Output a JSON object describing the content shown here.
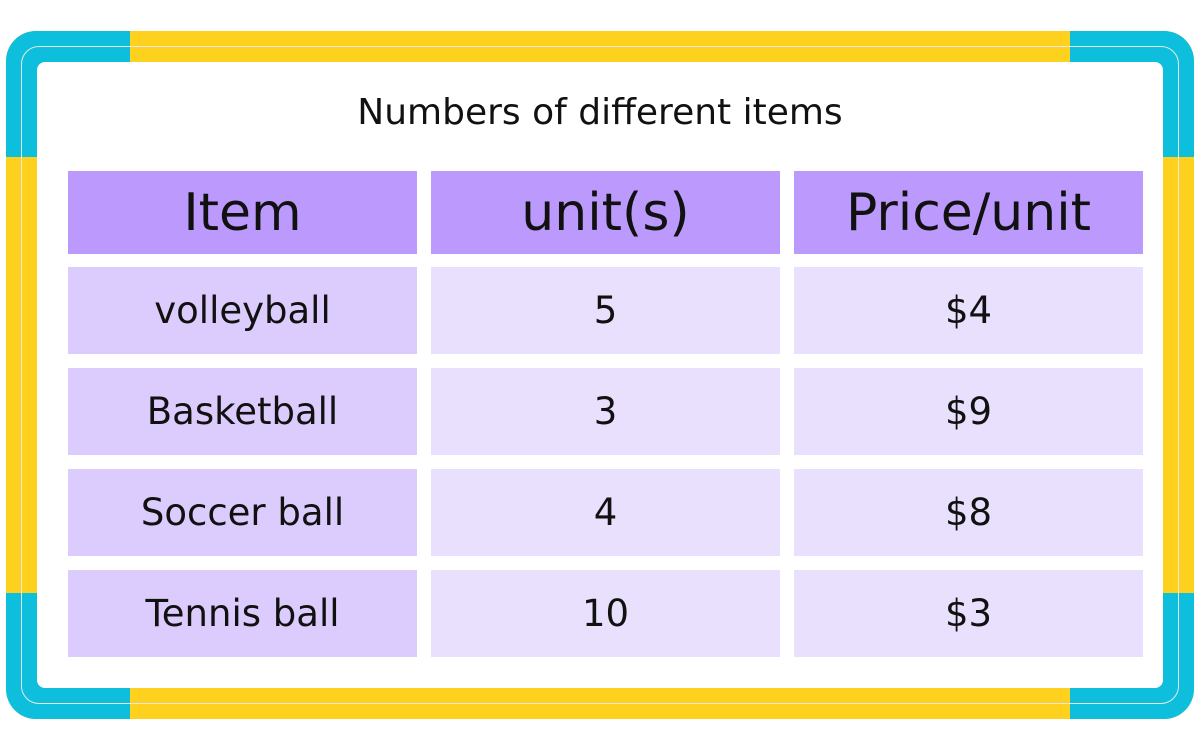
{
  "title": "Numbers of different items",
  "colors": {
    "frame_cyan": "#0dbfdc",
    "frame_yellow": "#fdd11d",
    "header": "#bb99fd",
    "first_col": "#dccbfd",
    "cells": "#e9e0fd"
  },
  "table": {
    "headers": [
      "Item",
      "unit(s)",
      "Price/unit"
    ],
    "rows": [
      [
        "volleyball",
        "5",
        "$4"
      ],
      [
        "Basketball",
        "3",
        "$9"
      ],
      [
        "Soccer ball",
        "4",
        "$8"
      ],
      [
        "Tennis ball",
        "10",
        "$3"
      ]
    ]
  }
}
